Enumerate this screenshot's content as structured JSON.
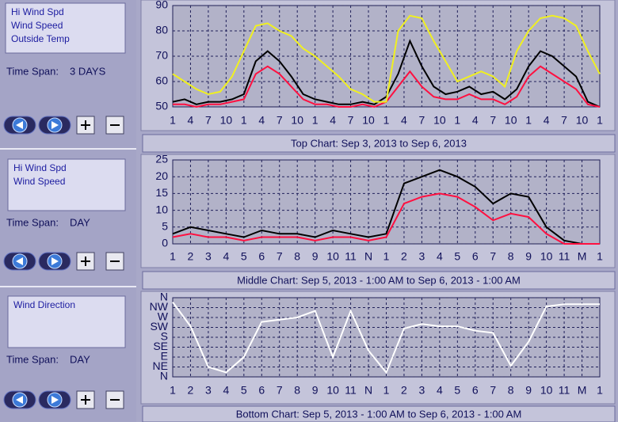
{
  "panels": [
    {
      "time_span_label": "Time Span:",
      "time_span": "3 DAYS"
    },
    {
      "time_span_label": "Time Span:",
      "time_span": "DAY"
    },
    {
      "time_span_label": "Time Span:",
      "time_span": "DAY"
    }
  ],
  "chart_data": [
    {
      "type": "line",
      "title": "Top Chart:  Sep 3, 2013  to  Sep 6, 2013",
      "x": [
        0,
        2,
        4,
        6,
        8,
        10,
        12,
        14,
        16,
        18,
        20,
        22,
        24,
        26,
        28,
        30,
        32,
        34,
        36,
        38,
        40,
        42,
        44,
        46,
        48,
        50,
        52,
        54,
        56,
        58,
        60,
        62,
        64,
        66,
        68,
        70,
        72
      ],
      "series": [
        {
          "name": "Hi Wind Spd",
          "color": "#000000",
          "values": [
            52,
            53,
            51,
            52,
            52,
            53,
            55,
            68,
            72,
            68,
            62,
            55,
            53,
            52,
            51,
            51,
            52,
            51,
            54,
            63,
            76,
            66,
            58,
            55,
            56,
            58,
            55,
            56,
            53,
            57,
            66,
            72,
            70,
            66,
            62,
            52,
            50
          ]
        },
        {
          "name": "Wind Speed",
          "color": "#ff1040",
          "values": [
            51,
            51,
            50,
            51,
            51,
            52,
            53,
            63,
            66,
            63,
            58,
            53,
            51,
            51,
            50,
            50,
            51,
            50,
            52,
            58,
            64,
            58,
            54,
            53,
            53,
            55,
            53,
            53,
            51,
            54,
            62,
            66,
            63,
            60,
            57,
            51,
            50
          ]
        },
        {
          "name": "Outside Temp",
          "color": "#f0f020",
          "values": [
            63,
            60,
            57,
            55,
            56,
            62,
            72,
            82,
            83,
            80,
            78,
            73,
            70,
            66,
            62,
            57,
            55,
            52,
            52,
            80,
            86,
            85,
            76,
            68,
            60,
            62,
            64,
            62,
            58,
            72,
            80,
            85,
            86,
            85,
            82,
            72,
            63
          ]
        }
      ],
      "xlim": [
        0,
        72
      ],
      "xticks": [
        {
          "value": 0,
          "label": "1"
        },
        {
          "value": 3,
          "label": "4"
        },
        {
          "value": 6,
          "label": "7"
        },
        {
          "value": 9,
          "label": "10"
        },
        {
          "value": 12,
          "label": "1"
        },
        {
          "value": 15,
          "label": "4"
        },
        {
          "value": 18,
          "label": "7"
        },
        {
          "value": 21,
          "label": "10"
        },
        {
          "value": 24,
          "label": "1"
        },
        {
          "value": 27,
          "label": "4"
        },
        {
          "value": 30,
          "label": "7"
        },
        {
          "value": 33,
          "label": "10"
        },
        {
          "value": 36,
          "label": "1"
        },
        {
          "value": 39,
          "label": "4"
        },
        {
          "value": 42,
          "label": "7"
        },
        {
          "value": 45,
          "label": "10"
        },
        {
          "value": 48,
          "label": "1"
        },
        {
          "value": 51,
          "label": "4"
        },
        {
          "value": 54,
          "label": "7"
        },
        {
          "value": 57,
          "label": "10"
        },
        {
          "value": 60,
          "label": "1"
        },
        {
          "value": 63,
          "label": "4"
        },
        {
          "value": 66,
          "label": "7"
        },
        {
          "value": 69,
          "label": "10"
        },
        {
          "value": 72,
          "label": "1"
        }
      ],
      "ylim": [
        50,
        90
      ],
      "yticks": [
        50,
        60,
        70,
        80,
        90
      ],
      "grid": true
    },
    {
      "type": "line",
      "title": "Middle Chart:  Sep 5, 2013 - 1:00 AM  to  Sep 6, 2013 - 1:00 AM",
      "x": [
        0,
        1,
        2,
        3,
        4,
        5,
        6,
        7,
        8,
        9,
        10,
        11,
        12,
        13,
        14,
        15,
        16,
        17,
        18,
        19,
        20,
        21,
        22,
        23,
        24
      ],
      "series": [
        {
          "name": "Hi Wind Spd",
          "color": "#000000",
          "values": [
            3,
            5,
            4,
            3,
            2,
            4,
            3,
            3,
            2,
            4,
            3,
            2,
            3,
            18,
            20,
            22,
            20,
            17,
            12,
            15,
            14,
            5,
            1,
            0,
            0
          ]
        },
        {
          "name": "Wind Speed",
          "color": "#ff1040",
          "values": [
            2,
            3,
            2,
            2,
            1,
            2,
            2,
            2,
            1,
            2,
            2,
            1,
            2,
            12,
            14,
            15,
            14,
            11,
            7,
            9,
            8,
            3,
            0,
            0,
            0
          ]
        }
      ],
      "xlim": [
        0,
        24
      ],
      "xticks": [
        {
          "value": 0,
          "label": "1"
        },
        {
          "value": 1,
          "label": "2"
        },
        {
          "value": 2,
          "label": "3"
        },
        {
          "value": 3,
          "label": "4"
        },
        {
          "value": 4,
          "label": "5"
        },
        {
          "value": 5,
          "label": "6"
        },
        {
          "value": 6,
          "label": "7"
        },
        {
          "value": 7,
          "label": "8"
        },
        {
          "value": 8,
          "label": "9"
        },
        {
          "value": 9,
          "label": "10"
        },
        {
          "value": 10,
          "label": "11"
        },
        {
          "value": 11,
          "label": "N"
        },
        {
          "value": 12,
          "label": "1"
        },
        {
          "value": 13,
          "label": "2"
        },
        {
          "value": 14,
          "label": "3"
        },
        {
          "value": 15,
          "label": "4"
        },
        {
          "value": 16,
          "label": "5"
        },
        {
          "value": 17,
          "label": "6"
        },
        {
          "value": 18,
          "label": "7"
        },
        {
          "value": 19,
          "label": "8"
        },
        {
          "value": 20,
          "label": "9"
        },
        {
          "value": 21,
          "label": "10"
        },
        {
          "value": 22,
          "label": "11"
        },
        {
          "value": 23,
          "label": "M"
        },
        {
          "value": 24,
          "label": "1"
        }
      ],
      "ylim": [
        0,
        25
      ],
      "yticks": [
        0,
        5,
        10,
        15,
        20,
        25
      ],
      "grid": true
    },
    {
      "type": "line",
      "title": "Bottom Chart:  Sep 5, 2013 - 1:00 AM  to  Sep 6, 2013 - 1:00 AM",
      "x": [
        0,
        1,
        2,
        3,
        4,
        5,
        6,
        7,
        8,
        9,
        10,
        11,
        12,
        13,
        14,
        15,
        16,
        17,
        18,
        19,
        20,
        21,
        22,
        23,
        24
      ],
      "series": [
        {
          "name": "Wind Direction",
          "color": "#ffffff",
          "values": [
            340,
            230,
            45,
            20,
            90,
            250,
            260,
            270,
            300,
            90,
            300,
            120,
            20,
            220,
            240,
            230,
            230,
            210,
            200,
            50,
            160,
            320,
            330,
            330,
            330
          ]
        }
      ],
      "xlim": [
        0,
        24
      ],
      "xticks": [
        {
          "value": 0,
          "label": "1"
        },
        {
          "value": 1,
          "label": "2"
        },
        {
          "value": 2,
          "label": "3"
        },
        {
          "value": 3,
          "label": "4"
        },
        {
          "value": 4,
          "label": "5"
        },
        {
          "value": 5,
          "label": "6"
        },
        {
          "value": 6,
          "label": "7"
        },
        {
          "value": 7,
          "label": "8"
        },
        {
          "value": 8,
          "label": "9"
        },
        {
          "value": 9,
          "label": "10"
        },
        {
          "value": 10,
          "label": "11"
        },
        {
          "value": 11,
          "label": "N"
        },
        {
          "value": 12,
          "label": "1"
        },
        {
          "value": 13,
          "label": "2"
        },
        {
          "value": 14,
          "label": "3"
        },
        {
          "value": 15,
          "label": "4"
        },
        {
          "value": 16,
          "label": "5"
        },
        {
          "value": 17,
          "label": "6"
        },
        {
          "value": 18,
          "label": "7"
        },
        {
          "value": 19,
          "label": "8"
        },
        {
          "value": 20,
          "label": "9"
        },
        {
          "value": 21,
          "label": "10"
        },
        {
          "value": 22,
          "label": "11"
        },
        {
          "value": 23,
          "label": "M"
        },
        {
          "value": 24,
          "label": "1"
        }
      ],
      "ylim": [
        0,
        360
      ],
      "yticks": [
        {
          "value": 0,
          "label": "N"
        },
        {
          "value": 45,
          "label": "NE"
        },
        {
          "value": 90,
          "label": "E"
        },
        {
          "value": 135,
          "label": "SE"
        },
        {
          "value": 180,
          "label": "S"
        },
        {
          "value": 225,
          "label": "SW"
        },
        {
          "value": 270,
          "label": "W"
        },
        {
          "value": 315,
          "label": "NW"
        },
        {
          "value": 360,
          "label": "N"
        }
      ],
      "grid": true
    }
  ]
}
